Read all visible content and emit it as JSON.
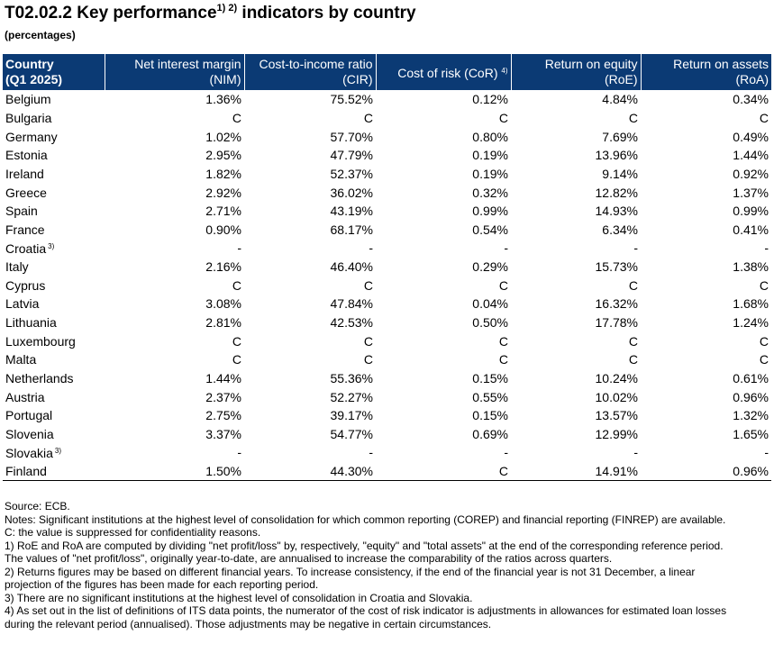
{
  "title": {
    "main_before": "T02.02.2 Key performance",
    "main_sup": "1) 2)",
    "main_after": " indicators by country",
    "subtitle": "(percentages)"
  },
  "table": {
    "headers": {
      "country_line1": "Country",
      "country_line2": "(Q1 2025)",
      "nim_line1": "Net interest margin",
      "nim_line2": "(NIM)",
      "cir_line1": "Cost-to-income ratio",
      "cir_line2": "(CIR)",
      "cor_text": "Cost of risk (CoR)",
      "cor_sup": "4)",
      "roe_line1": "Return on equity",
      "roe_line2": "(RoE)",
      "roa_line1": "Return on assets",
      "roa_line2": "(RoA)"
    },
    "rows": [
      {
        "country": "Belgium",
        "sup": "",
        "nim": "1.36%",
        "cir": "75.52%",
        "cor": "0.12%",
        "roe": "4.84%",
        "roa": "0.34%"
      },
      {
        "country": "Bulgaria",
        "sup": "",
        "nim": "C",
        "cir": "C",
        "cor": "C",
        "roe": "C",
        "roa": "C"
      },
      {
        "country": "Germany",
        "sup": "",
        "nim": "1.02%",
        "cir": "57.70%",
        "cor": "0.80%",
        "roe": "7.69%",
        "roa": "0.49%"
      },
      {
        "country": "Estonia",
        "sup": "",
        "nim": "2.95%",
        "cir": "47.79%",
        "cor": "0.19%",
        "roe": "13.96%",
        "roa": "1.44%"
      },
      {
        "country": "Ireland",
        "sup": "",
        "nim": "1.82%",
        "cir": "52.37%",
        "cor": "0.19%",
        "roe": "9.14%",
        "roa": "0.92%"
      },
      {
        "country": "Greece",
        "sup": "",
        "nim": "2.92%",
        "cir": "36.02%",
        "cor": "0.32%",
        "roe": "12.82%",
        "roa": "1.37%"
      },
      {
        "country": "Spain",
        "sup": "",
        "nim": "2.71%",
        "cir": "43.19%",
        "cor": "0.99%",
        "roe": "14.93%",
        "roa": "0.99%"
      },
      {
        "country": "France",
        "sup": "",
        "nim": "0.90%",
        "cir": "68.17%",
        "cor": "0.54%",
        "roe": "6.34%",
        "roa": "0.41%"
      },
      {
        "country": "Croatia",
        "sup": "3)",
        "nim": "-",
        "cir": "-",
        "cor": "-",
        "roe": "-",
        "roa": "-"
      },
      {
        "country": "Italy",
        "sup": "",
        "nim": "2.16%",
        "cir": "46.40%",
        "cor": "0.29%",
        "roe": "15.73%",
        "roa": "1.38%"
      },
      {
        "country": "Cyprus",
        "sup": "",
        "nim": "C",
        "cir": "C",
        "cor": "C",
        "roe": "C",
        "roa": "C"
      },
      {
        "country": "Latvia",
        "sup": "",
        "nim": "3.08%",
        "cir": "47.84%",
        "cor": "0.04%",
        "roe": "16.32%",
        "roa": "1.68%"
      },
      {
        "country": "Lithuania",
        "sup": "",
        "nim": "2.81%",
        "cir": "42.53%",
        "cor": "0.50%",
        "roe": "17.78%",
        "roa": "1.24%"
      },
      {
        "country": "Luxembourg",
        "sup": "",
        "nim": "C",
        "cir": "C",
        "cor": "C",
        "roe": "C",
        "roa": "C"
      },
      {
        "country": "Malta",
        "sup": "",
        "nim": "C",
        "cir": "C",
        "cor": "C",
        "roe": "C",
        "roa": "C"
      },
      {
        "country": "Netherlands",
        "sup": "",
        "nim": "1.44%",
        "cir": "55.36%",
        "cor": "0.15%",
        "roe": "10.24%",
        "roa": "0.61%"
      },
      {
        "country": "Austria",
        "sup": "",
        "nim": "2.37%",
        "cir": "52.27%",
        "cor": "0.55%",
        "roe": "10.02%",
        "roa": "0.96%"
      },
      {
        "country": "Portugal",
        "sup": "",
        "nim": "2.75%",
        "cir": "39.17%",
        "cor": "0.15%",
        "roe": "13.57%",
        "roa": "1.32%"
      },
      {
        "country": "Slovenia",
        "sup": "",
        "nim": "3.37%",
        "cir": "54.77%",
        "cor": "0.69%",
        "roe": "12.99%",
        "roa": "1.65%"
      },
      {
        "country": "Slovakia",
        "sup": "3)",
        "nim": "-",
        "cir": "-",
        "cor": "-",
        "roe": "-",
        "roa": "-"
      },
      {
        "country": "Finland",
        "sup": "",
        "nim": "1.50%",
        "cir": "44.30%",
        "cor": "C",
        "roe": "14.91%",
        "roa": "0.96%"
      }
    ]
  },
  "notes": [
    "Source: ECB.",
    "Notes: Significant institutions at the highest level of consolidation for which common reporting (COREP) and financial reporting (FINREP) are available.",
    "C: the value is suppressed for confidentiality reasons.",
    "1) RoE and RoA are computed by dividing \"net profit/loss\" by, respectively, \"equity\" and \"total assets\" at the end of the corresponding reference period.",
    "The values of \"net profit/loss\", originally year-to-date, are annualised to increase the comparability of the ratios across quarters.",
    "2) Returns figures may be based on different financial years. To increase consistency, if the end of the financial year is not 31 December, a linear",
    "projection of the figures has been made for each reporting period.",
    "3) There are no significant institutions at the highest level of consolidation in Croatia and Slovakia.",
    "4) As set out in the list of definitions of ITS data points, the numerator of the cost of risk indicator is adjustments in allowances for estimated loan losses",
    "during the relevant period (annualised). Those adjustments may be negative in certain circumstances."
  ],
  "colors": {
    "header_background": "#0b3a74",
    "header_text": "#ffffff"
  }
}
